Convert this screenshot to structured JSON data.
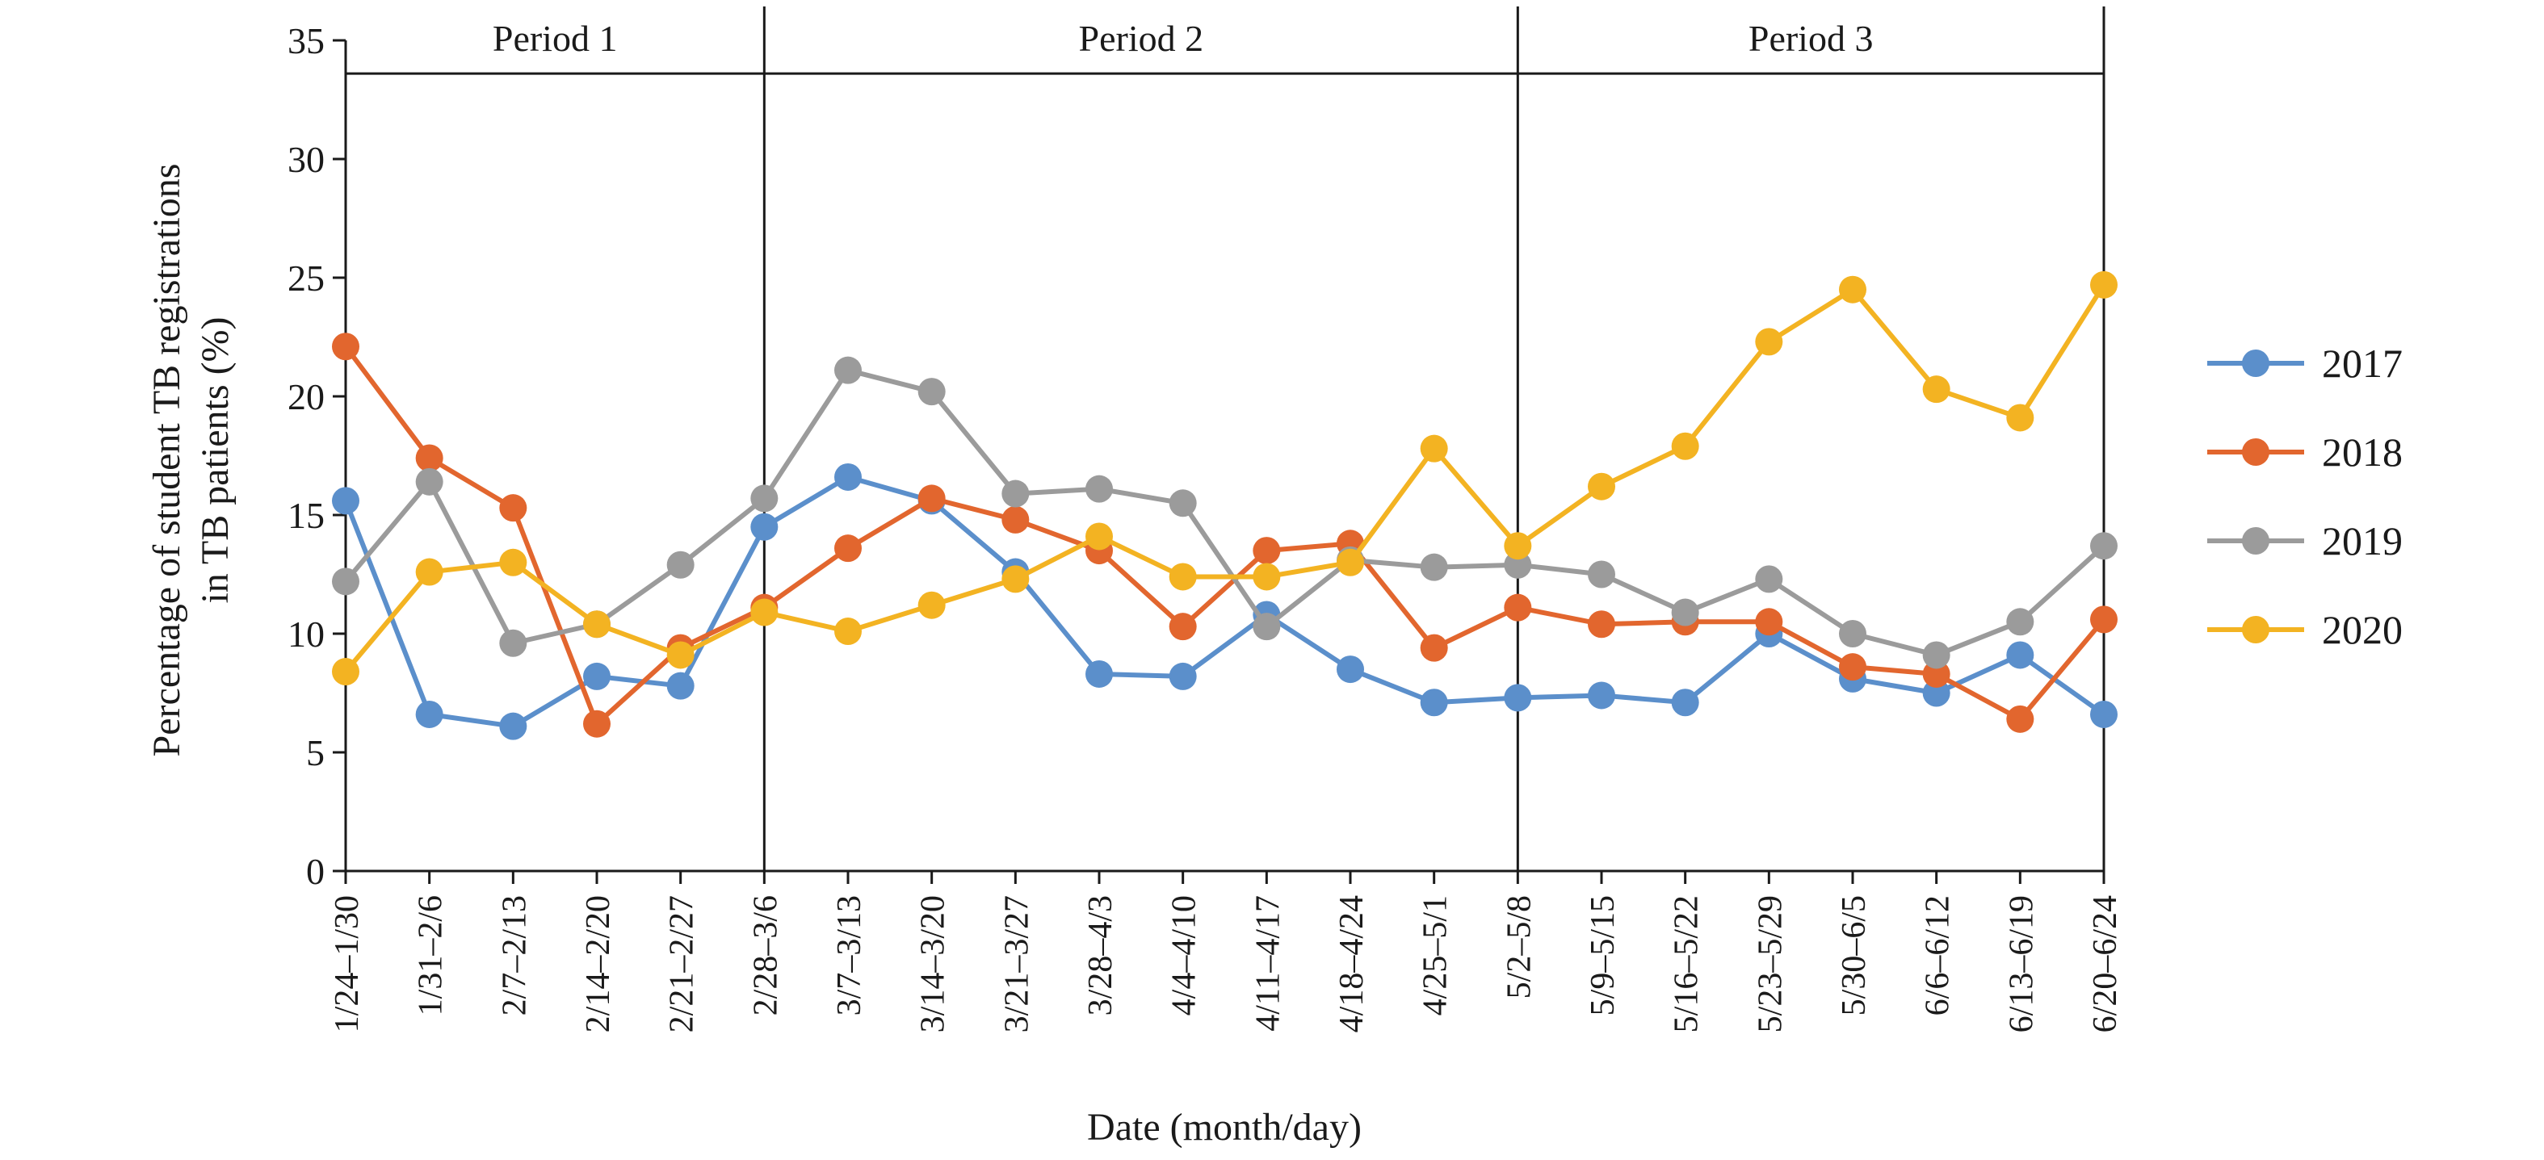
{
  "chart_data": {
    "type": "line",
    "xlabel": "Date (month/day)",
    "ylabel_lines": [
      "Percentage of student TB registrations",
      "in TB patients (%)"
    ],
    "ylim": [
      0,
      35
    ],
    "yticks": [
      0,
      5,
      10,
      15,
      20,
      25,
      30,
      35
    ],
    "grid": false,
    "legend_position": "right",
    "categories": [
      "1/24–1/30",
      "1/31–2/6",
      "2/7–2/13",
      "2/14–2/20",
      "2/21–2/27",
      "2/28–3/6",
      "3/7–3/13",
      "3/14–3/20",
      "3/21–3/27",
      "3/28–4/3",
      "4/4–4/10",
      "4/11–4/17",
      "4/18–4/24",
      "4/25–5/1",
      "5/2–5/8",
      "5/9–5/15",
      "5/16–5/22",
      "5/23–5/29",
      "5/30–6/5",
      "6/6–6/12",
      "6/13–6/19",
      "6/20–6/24"
    ],
    "periods": [
      {
        "label": "Period 1",
        "start": "1/24–1/30",
        "end": "2/28–3/6"
      },
      {
        "label": "Period 2",
        "start": "2/28–3/6",
        "end": "5/2–5/8"
      },
      {
        "label": "Period 3",
        "start": "5/2–5/8",
        "end": "6/20–6/24"
      }
    ],
    "series": [
      {
        "name": "2017",
        "color": "#5b8fcb",
        "values": [
          15.6,
          6.6,
          6.1,
          8.2,
          7.8,
          14.5,
          16.6,
          15.6,
          12.6,
          8.3,
          8.2,
          10.8,
          8.5,
          7.1,
          7.3,
          7.4,
          7.1,
          10.0,
          8.1,
          7.5,
          9.1,
          6.6
        ]
      },
      {
        "name": "2018",
        "color": "#e2662e",
        "values": [
          22.1,
          17.4,
          15.3,
          6.2,
          9.4,
          11.1,
          13.6,
          15.7,
          14.8,
          13.5,
          10.3,
          13.5,
          13.8,
          9.4,
          11.1,
          10.4,
          10.5,
          10.5,
          8.6,
          8.3,
          6.4,
          10.6
        ]
      },
      {
        "name": "2019",
        "color": "#9b9b9b",
        "values": [
          12.2,
          16.4,
          9.6,
          10.4,
          12.9,
          15.7,
          21.1,
          20.2,
          15.9,
          16.1,
          15.5,
          10.3,
          13.1,
          12.8,
          12.9,
          12.5,
          10.9,
          12.3,
          10.0,
          9.1,
          10.5,
          13.7
        ]
      },
      {
        "name": "2020",
        "color": "#f3b322",
        "values": [
          8.4,
          12.6,
          13.0,
          10.4,
          9.1,
          10.9,
          10.1,
          11.2,
          12.3,
          14.1,
          12.4,
          12.4,
          13.0,
          17.8,
          13.7,
          16.2,
          17.9,
          22.3,
          24.5,
          20.3,
          19.1,
          24.7
        ]
      }
    ]
  }
}
